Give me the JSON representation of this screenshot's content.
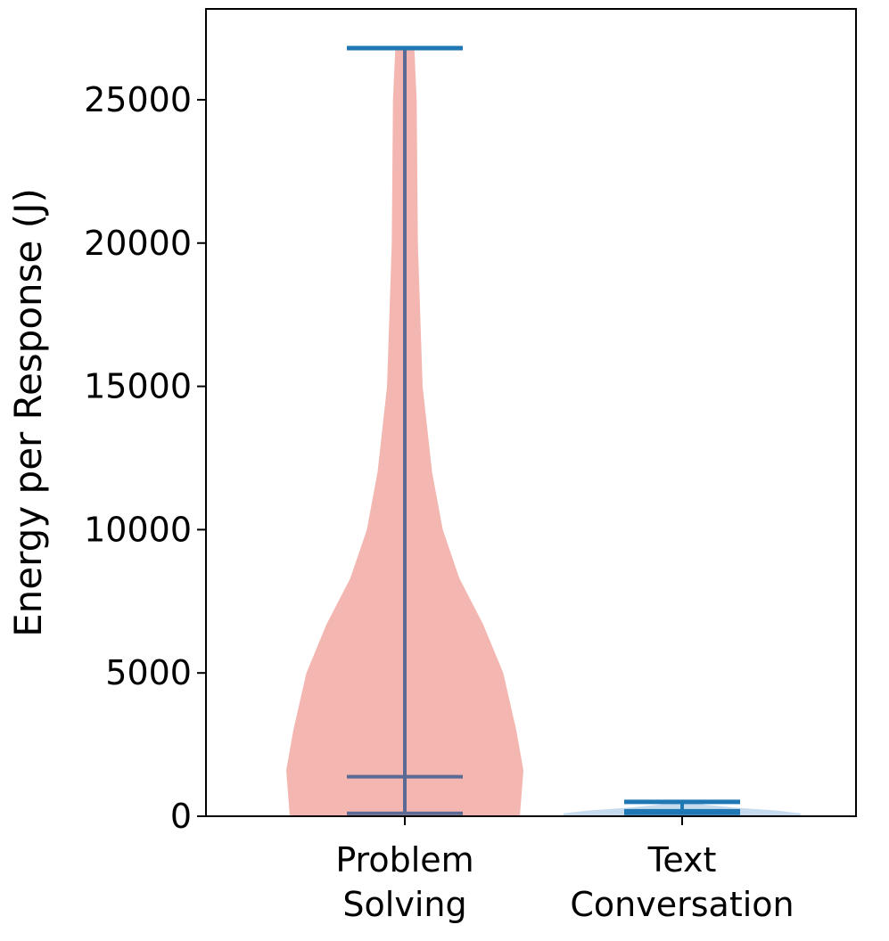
{
  "chart_data": {
    "type": "violin",
    "ylabel": "Energy per Response (J)",
    "categories": [
      [
        "Problem",
        "Solving"
      ],
      [
        "Text",
        "Conversation"
      ]
    ],
    "ylim": [
      0,
      28170
    ],
    "yticks": [
      0,
      5000,
      10000,
      15000,
      20000,
      25000
    ],
    "violins": [
      {
        "color": "#f4b6b0",
        "line_color": "#5b6a94",
        "cap_color": "#1f77b4",
        "min": 100,
        "median": 1380,
        "max": 26800,
        "kde_values": [
          0,
          1600,
          3000,
          5000,
          6700,
          8300,
          10000,
          12000,
          15000,
          20000,
          25000,
          26800
        ],
        "kde_widths": [
          0.97,
          1.0,
          0.94,
          0.83,
          0.66,
          0.46,
          0.32,
          0.23,
          0.15,
          0.11,
          0.1,
          0.08
        ]
      },
      {
        "color": "#c6dcee",
        "line_color": "#1f77b4",
        "cap_color": "#1f77b4",
        "min": 100,
        "median": 190,
        "max": 500,
        "kde_values": [
          0,
          100,
          200,
          300,
          400,
          500
        ],
        "kde_widths": [
          1.0,
          1.0,
          0.8,
          0.45,
          0.2,
          0.05
        ]
      }
    ]
  }
}
